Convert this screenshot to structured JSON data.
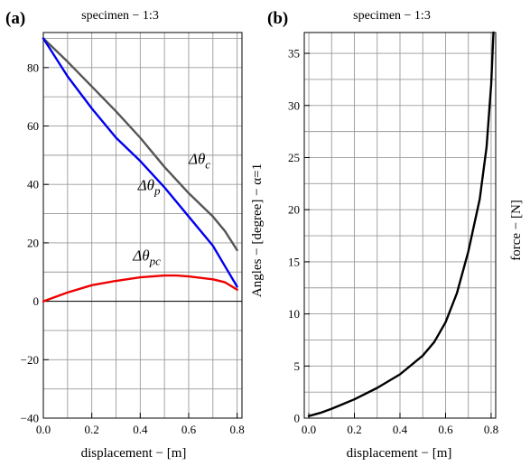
{
  "chart_data": [
    {
      "panel_label": "(a)",
      "type": "line",
      "title": "specimen − 1:3",
      "xlabel": "displacement − [m]",
      "ylabel": "Angles − [degree] − α=1",
      "xlim": [
        0,
        0.82
      ],
      "ylim": [
        -40,
        92
      ],
      "xticks": [
        "0.0",
        "0.2",
        "0.4",
        "0.6",
        "0.8"
      ],
      "yticks": [
        "−40",
        "−20",
        "0",
        "20",
        "40",
        "60",
        "80"
      ],
      "grid": true,
      "series": [
        {
          "name": "Δθc",
          "color": "#555555",
          "x": [
            0,
            0.1,
            0.2,
            0.3,
            0.4,
            0.5,
            0.6,
            0.7,
            0.75,
            0.8
          ],
          "y": [
            90,
            82,
            73.5,
            65,
            56,
            46,
            37,
            29,
            24,
            17.5
          ]
        },
        {
          "name": "Δθp",
          "color": "#0000ee",
          "x": [
            0,
            0.1,
            0.2,
            0.3,
            0.4,
            0.5,
            0.6,
            0.7,
            0.75,
            0.8
          ],
          "y": [
            90,
            77,
            66,
            56,
            48,
            39,
            29,
            19,
            12,
            5
          ]
        },
        {
          "name": "Δθpc",
          "color": "#ee0000",
          "x": [
            0,
            0.1,
            0.2,
            0.3,
            0.4,
            0.5,
            0.55,
            0.6,
            0.7,
            0.75,
            0.8
          ],
          "y": [
            0,
            3,
            5.5,
            7,
            8.2,
            8.8,
            8.8,
            8.5,
            7.5,
            6.5,
            4
          ]
        }
      ],
      "annotations": [
        {
          "base": "Δθ",
          "sub": "c",
          "x": 0.6,
          "y": 47
        },
        {
          "base": "Δθ",
          "sub": "p",
          "x": 0.39,
          "y": 38
        },
        {
          "base": "Δθ",
          "sub": "pc",
          "x": 0.37,
          "y": 14
        }
      ]
    },
    {
      "panel_label": "(b)",
      "type": "line",
      "title": "specimen − 1:3",
      "xlabel": "displacement − [m]",
      "ylabel": "force − [N]",
      "xlim": [
        -0.02,
        0.82
      ],
      "ylim": [
        0,
        37
      ],
      "xticks": [
        "0.0",
        "0.2",
        "0.4",
        "0.6",
        "0.8"
      ],
      "yticks": [
        "0",
        "5",
        "10",
        "15",
        "20",
        "25",
        "30",
        "35"
      ],
      "grid": true,
      "series": [
        {
          "name": "",
          "color": "#000000",
          "x": [
            0,
            0.05,
            0.1,
            0.2,
            0.3,
            0.4,
            0.5,
            0.55,
            0.6,
            0.65,
            0.7,
            0.75,
            0.78,
            0.8,
            0.81
          ],
          "y": [
            0.2,
            0.5,
            0.9,
            1.8,
            2.9,
            4.2,
            6.0,
            7.3,
            9.2,
            12.0,
            16.0,
            21.0,
            26.0,
            32.0,
            37.0
          ]
        }
      ]
    }
  ]
}
